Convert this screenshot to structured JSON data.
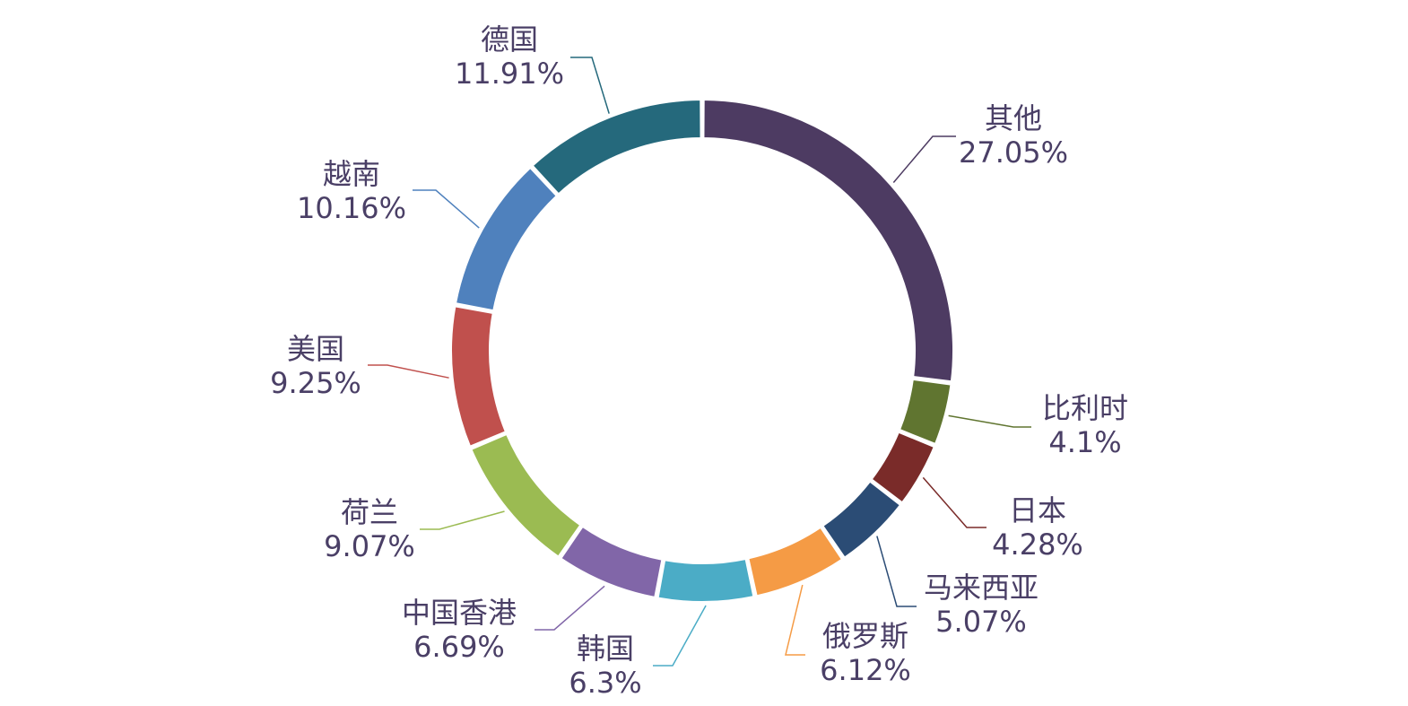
{
  "chart_data": {
    "type": "pie",
    "donut": true,
    "title": "",
    "legend": "none",
    "slices": [
      {
        "label": "其他",
        "value": 27.05,
        "value_label": "27.05%",
        "color": "#4d3b62"
      },
      {
        "label": "比利时",
        "value": 4.1,
        "value_label": "4.1%",
        "color": "#607530"
      },
      {
        "label": "日本",
        "value": 4.28,
        "value_label": "4.28%",
        "color": "#7a2b29"
      },
      {
        "label": "马来西亚",
        "value": 5.07,
        "value_label": "5.07%",
        "color": "#2b4c75"
      },
      {
        "label": "俄罗斯",
        "value": 6.12,
        "value_label": "6.12%",
        "color": "#f59b45"
      },
      {
        "label": "韩国",
        "value": 6.3,
        "value_label": "6.3%",
        "color": "#4bacc6"
      },
      {
        "label": "中国香港",
        "value": 6.69,
        "value_label": "6.69%",
        "color": "#8166a8"
      },
      {
        "label": "荷兰",
        "value": 9.07,
        "value_label": "9.07%",
        "color": "#9bbb52"
      },
      {
        "label": "美国",
        "value": 9.25,
        "value_label": "9.25%",
        "color": "#c0504d"
      },
      {
        "label": "越南",
        "value": 10.16,
        "value_label": "10.16%",
        "color": "#4f81bd"
      },
      {
        "label": "德国",
        "value": 11.91,
        "value_label": "11.91%",
        "color": "#25697c"
      }
    ]
  }
}
